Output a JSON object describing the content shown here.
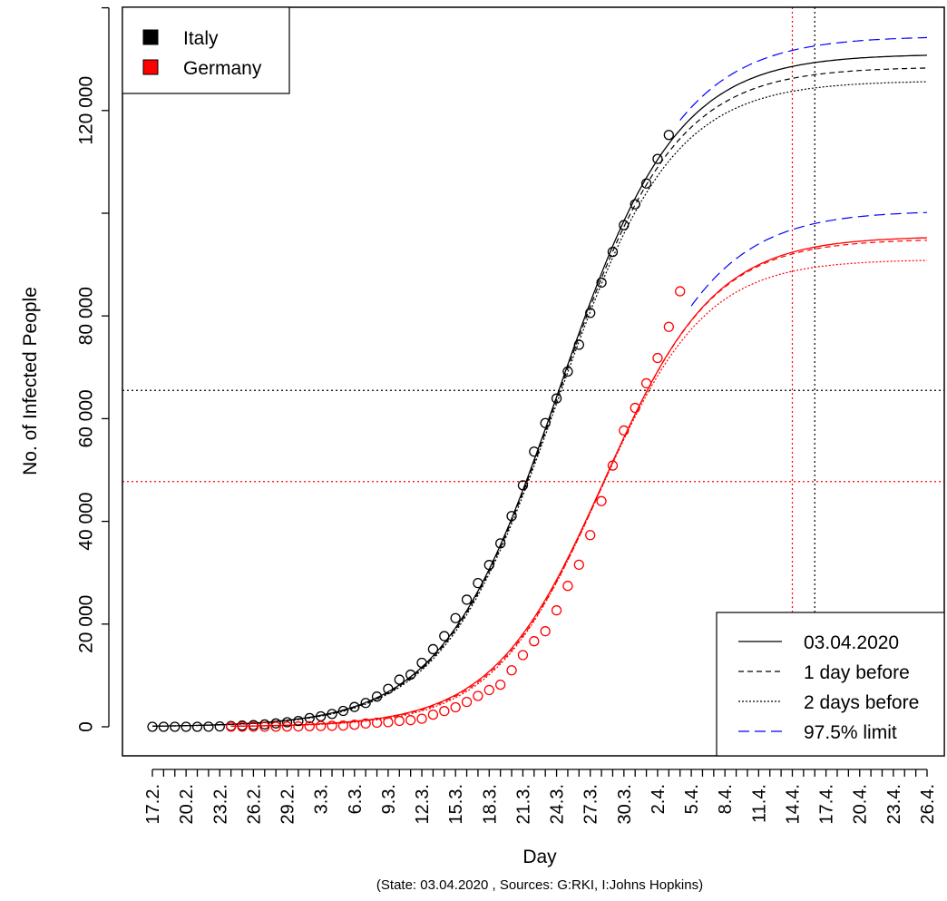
{
  "chart_data": {
    "type": "line",
    "title": "",
    "xlabel": "Day",
    "ylabel": "No. of Infected People",
    "caption": "(State:  03.04.2020 , Sources: G:RKI, I:Johns Hopkins)",
    "x_domain_days": [
      0,
      69
    ],
    "ylim": [
      -5000,
      140000
    ],
    "y_ticks": [
      {
        "value": 0,
        "label": "0"
      },
      {
        "value": 20000,
        "label": "20 000"
      },
      {
        "value": 40000,
        "label": "40 000"
      },
      {
        "value": 60000,
        "label": "60 000"
      },
      {
        "value": 80000,
        "label": "80 000"
      },
      {
        "value": 120000,
        "label": "120 000"
      }
    ],
    "y_minor_ticks": [
      100000,
      140000
    ],
    "x_ticks": [
      {
        "day": 0,
        "label": "17.2."
      },
      {
        "day": 3,
        "label": "20.2."
      },
      {
        "day": 6,
        "label": "23.2."
      },
      {
        "day": 9,
        "label": "26.2."
      },
      {
        "day": 12,
        "label": "29.2."
      },
      {
        "day": 15,
        "label": "3.3."
      },
      {
        "day": 18,
        "label": "6.3."
      },
      {
        "day": 21,
        "label": "9.3."
      },
      {
        "day": 24,
        "label": "12.3."
      },
      {
        "day": 27,
        "label": "15.3."
      },
      {
        "day": 30,
        "label": "18.3."
      },
      {
        "day": 33,
        "label": "21.3."
      },
      {
        "day": 36,
        "label": "24.3."
      },
      {
        "day": 39,
        "label": "27.3."
      },
      {
        "day": 42,
        "label": "30.3."
      },
      {
        "day": 45,
        "label": "2.4."
      },
      {
        "day": 48,
        "label": "5.4."
      },
      {
        "day": 51,
        "label": "8.4."
      },
      {
        "day": 54,
        "label": "11.4."
      },
      {
        "day": 57,
        "label": "14.4."
      },
      {
        "day": 60,
        "label": "17.4."
      },
      {
        "day": 63,
        "label": "20.4."
      },
      {
        "day": 66,
        "label": "23.4."
      },
      {
        "day": 69,
        "label": "26.4."
      }
    ],
    "series": [
      {
        "name": "Italy",
        "color": "#000000",
        "observed_start_day": 0,
        "observed": [
          3,
          3,
          3,
          3,
          3,
          20,
          62,
          155,
          229,
          322,
          453,
          655,
          888,
          1128,
          1694,
          2036,
          2502,
          3089,
          3858,
          4636,
          5883,
          7375,
          9172,
          10149,
          12462,
          15113,
          17660,
          21157,
          24747,
          27980,
          31506,
          35713,
          41035,
          47021,
          53578,
          59138,
          63927,
          69176,
          74386,
          80589,
          86498,
          92472,
          97689,
          101739,
          105792,
          110574,
          115242
        ],
        "fit_today": {
          "K": 131000,
          "r": 0.191,
          "t0": 36.2
        },
        "fit_1day": {
          "K": 128500,
          "r": 0.193,
          "t0": 36.1
        },
        "fit_2days": {
          "K": 125800,
          "r": 0.195,
          "t0": 36.0
        },
        "upper_97_5": {
          "K": 134500,
          "r": 0.188,
          "t0": 36.5
        },
        "upper_start_day": 47,
        "peak_day": 59
      },
      {
        "name": "Germany",
        "color": "#ff0000",
        "observed_start_day": 7,
        "observed": [
          16,
          16,
          18,
          21,
          26,
          53,
          66,
          117,
          150,
          188,
          240,
          400,
          639,
          795,
          902,
          1139,
          1296,
          1567,
          2369,
          3062,
          3795,
          4838,
          6012,
          7156,
          8198,
          10999,
          13957,
          16662,
          18610,
          22672,
          27436,
          31554,
          37323,
          43938,
          50871,
          57695,
          62095,
          66885,
          71808,
          77872,
          84794
        ],
        "fit_today": {
          "K": 95500,
          "r": 0.202,
          "t0": 40.2
        },
        "fit_1day": {
          "K": 95000,
          "r": 0.205,
          "t0": 40.2
        },
        "fit_2days": {
          "K": 91000,
          "r": 0.212,
          "t0": 39.8
        },
        "upper_97_5": {
          "K": 100500,
          "r": 0.198,
          "t0": 40.5
        },
        "upper_start_day": 48,
        "peak_day": 57
      }
    ],
    "legend_countries": {
      "placement": "top-left",
      "entries": [
        {
          "label": "Italy",
          "color": "#000000"
        },
        {
          "label": "Germany",
          "color": "#ff0000"
        }
      ]
    },
    "legend_lines": {
      "placement": "bottom-right",
      "entries": [
        {
          "label": "03.04.2020",
          "style": "solid",
          "color": "#000000"
        },
        {
          "label": "1 day before",
          "style": "dashed",
          "color": "#000000"
        },
        {
          "label": "2 days before",
          "style": "dotted",
          "color": "#000000"
        },
        {
          "label": "97.5% limit",
          "style": "longdash",
          "color": "#0000ff"
        }
      ]
    }
  }
}
